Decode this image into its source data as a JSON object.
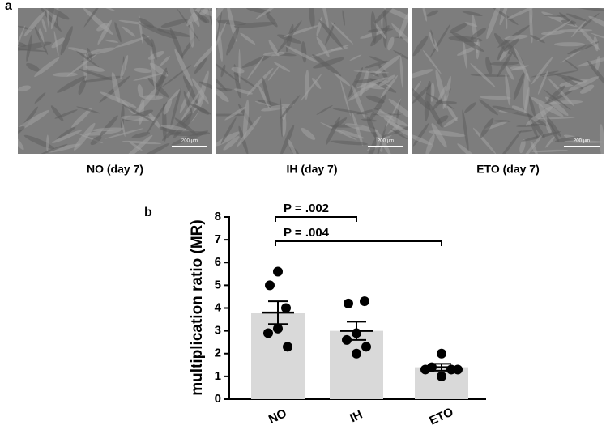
{
  "panel_a": {
    "label": "a",
    "images": [
      {
        "caption": "NO (day 7)",
        "scale_bar": "200 µm"
      },
      {
        "caption": "IH (day 7)",
        "scale_bar": "200 µm"
      },
      {
        "caption": "ETO (day 7)",
        "scale_bar": "200 µm"
      }
    ]
  },
  "chart_data": {
    "type": "bar",
    "panel_label": "b",
    "ylabel": "multiplication ratio (MR)",
    "categories": [
      "NO",
      "IH",
      "ETO"
    ],
    "values": [
      3.8,
      3.0,
      1.4
    ],
    "errors": [
      0.5,
      0.4,
      0.15
    ],
    "points": [
      [
        5.6,
        5.0,
        4.0,
        3.1,
        2.9,
        2.3
      ],
      [
        4.2,
        4.3,
        2.9,
        2.6,
        2.3,
        2.0
      ],
      [
        2.0,
        1.4,
        1.3,
        1.3,
        1.3,
        1.0
      ]
    ],
    "color": "#d9d9d9",
    "point_color": "#000000",
    "ylim": [
      0,
      8
    ],
    "yticks": [
      0,
      1,
      2,
      3,
      4,
      5,
      6,
      7,
      8
    ],
    "annotations": [
      "P = .002",
      "P = .004"
    ]
  }
}
